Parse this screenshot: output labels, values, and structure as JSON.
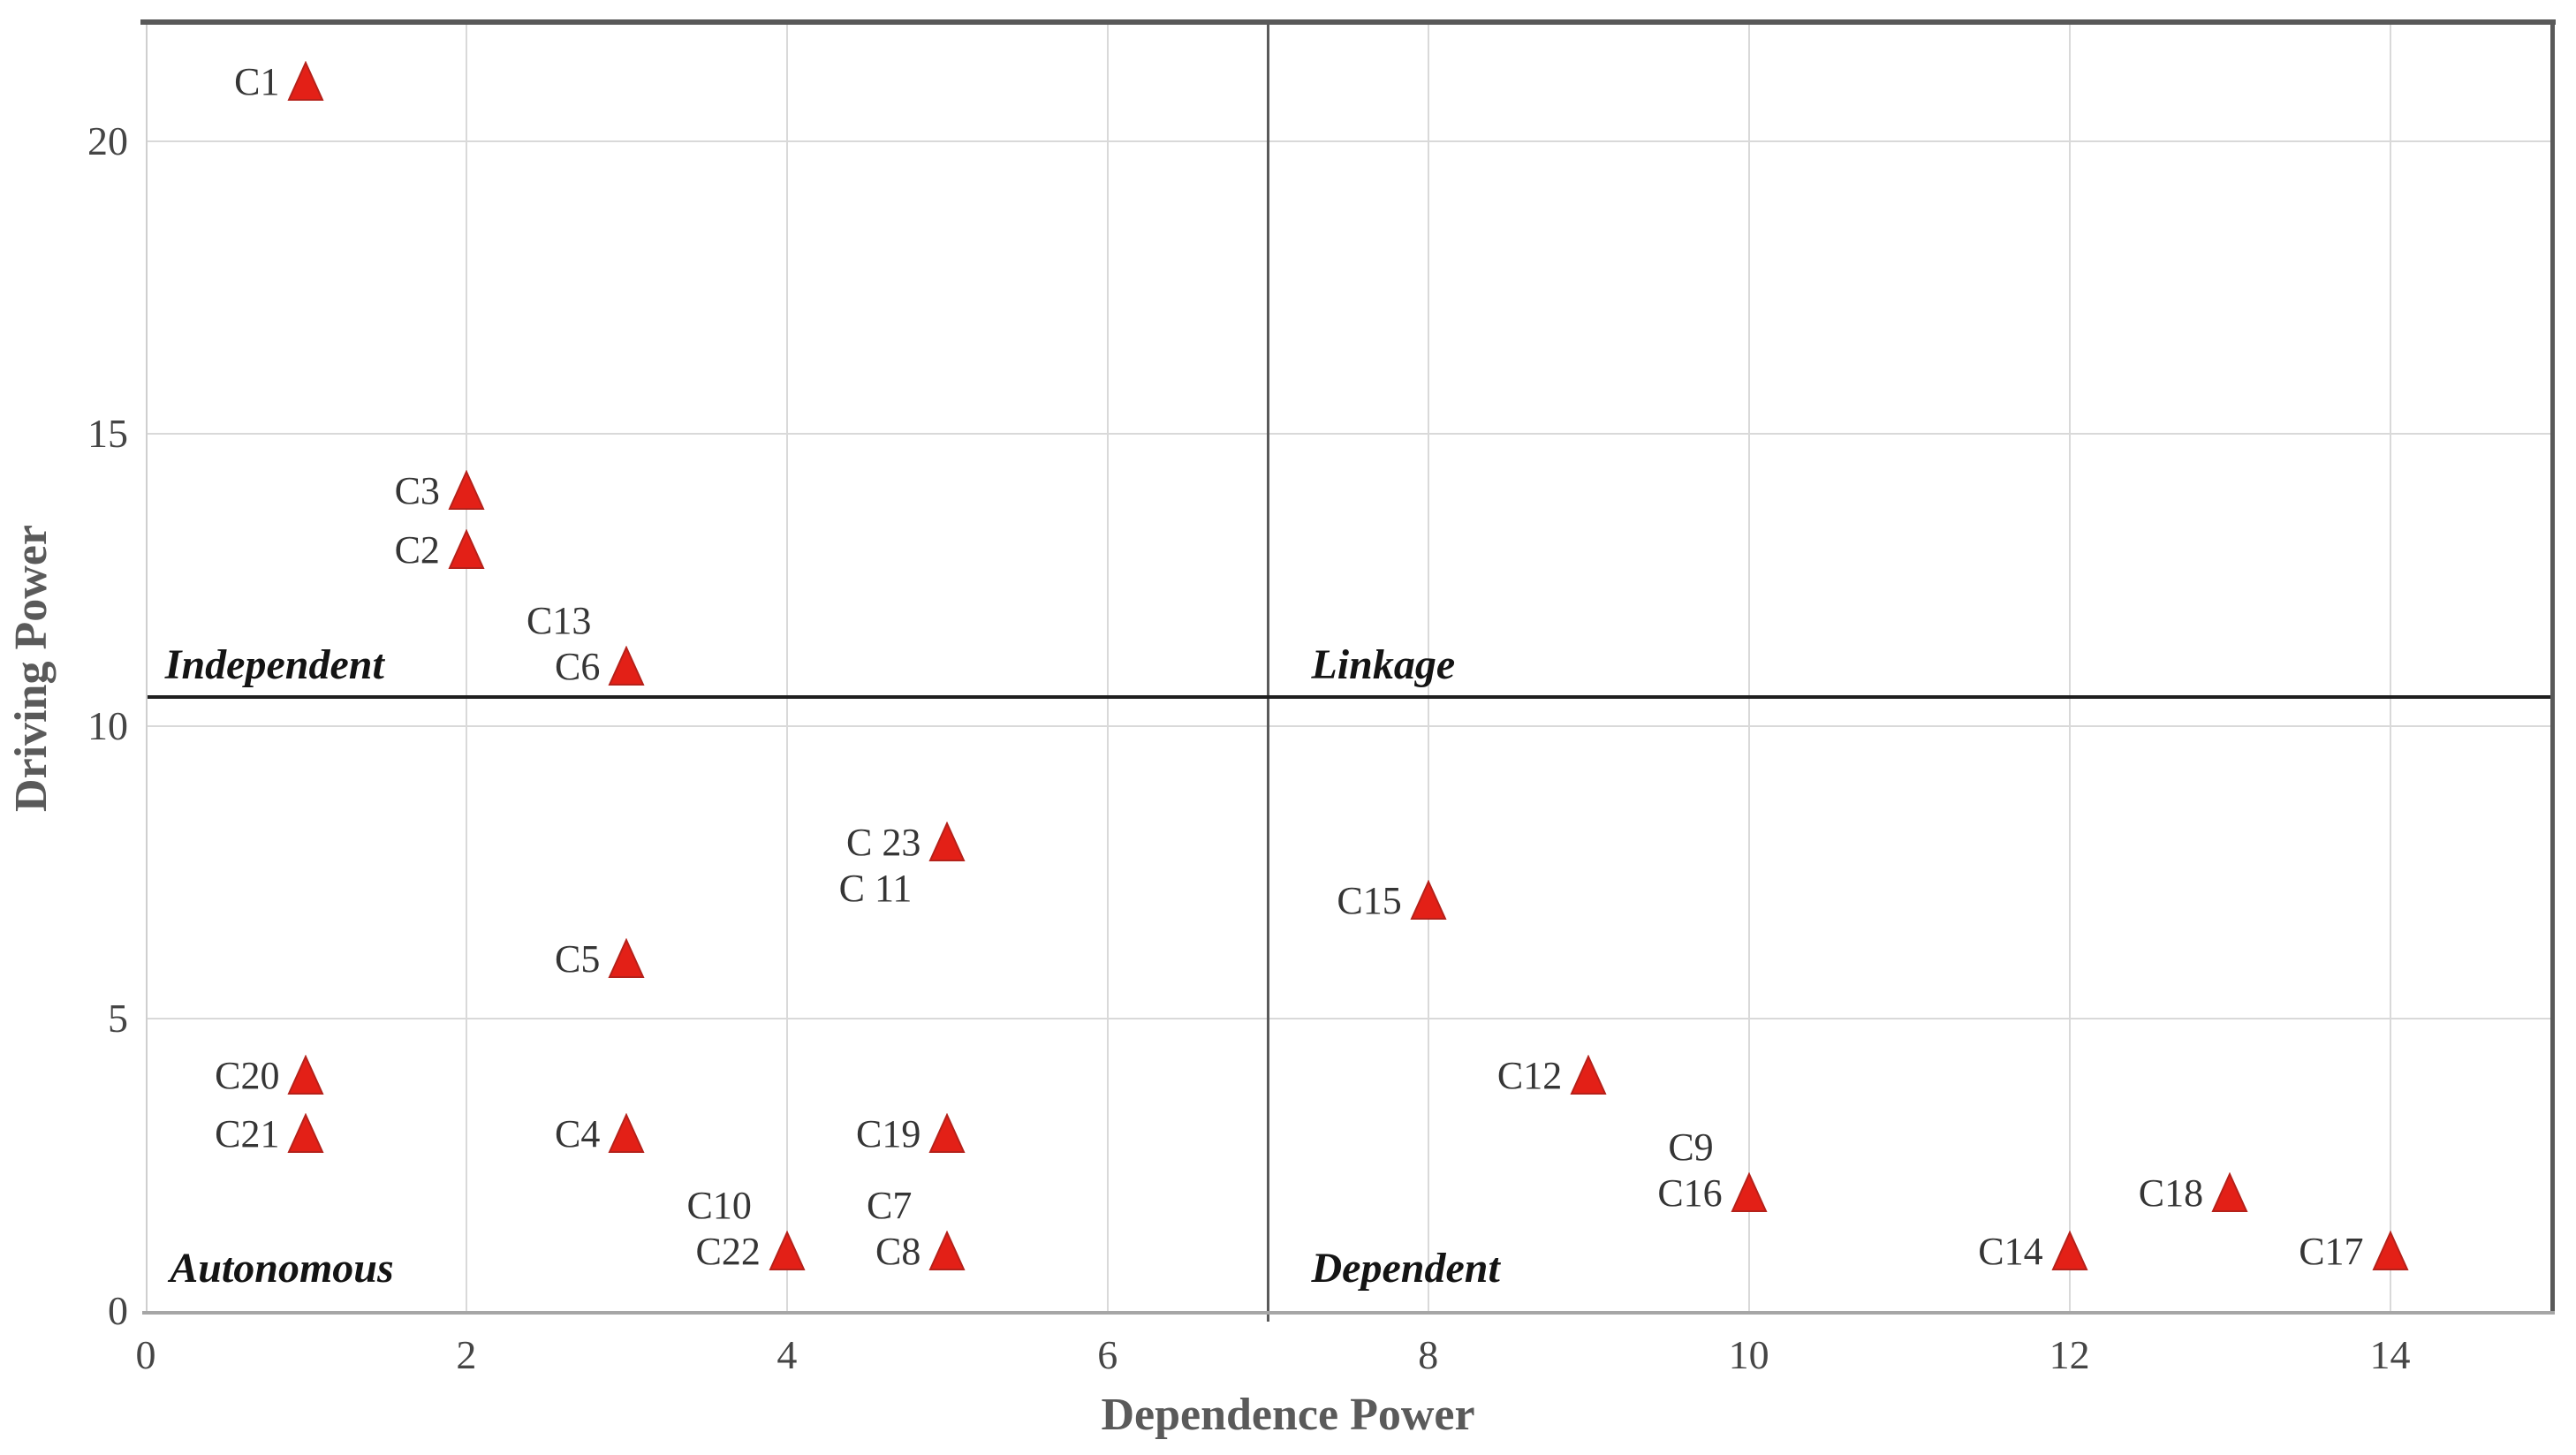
{
  "chart_data": {
    "type": "scatter",
    "title": "",
    "xlabel": "Dependence Power",
    "ylabel": "Driving Power",
    "xlim": [
      0,
      15
    ],
    "ylim": [
      0,
      22
    ],
    "x_ticks": [
      "0",
      "2",
      "4",
      "6",
      "8",
      "10",
      "12",
      "14"
    ],
    "x_tick_values": [
      0,
      2,
      4,
      6,
      8,
      10,
      12,
      14
    ],
    "y_ticks": [
      "0",
      "5",
      "10",
      "15",
      "20"
    ],
    "y_tick_values": [
      0,
      5,
      10,
      15,
      20
    ],
    "grid": true,
    "legend": "none",
    "marker": {
      "shape": "triangle-up",
      "fill": "#e32017",
      "stroke": "#b5211a"
    },
    "style": {
      "gridline_color": "#d9d9d9",
      "border_color": "#595959",
      "axis_line_color": "#a6a6a6",
      "left_border_color": "#cfcfcf",
      "divider_v_color": "#5a5a5a",
      "divider_h_color": "#1f1f1f"
    },
    "quadrant_dividers": {
      "x": 7,
      "y": 10.5
    },
    "quadrant_labels": [
      {
        "text": "Independent",
        "x": 0.12,
        "y": 11.05
      },
      {
        "text": "Linkage",
        "x": 7.15,
        "y": 11.05
      },
      {
        "text": "Autonomous",
        "x": 0.15,
        "y": 0.72
      },
      {
        "text": "Dependent",
        "x": 7.15,
        "y": 0.72
      }
    ],
    "points": [
      {
        "label": "C1",
        "x": 1,
        "y": 21
      },
      {
        "label": "C3",
        "x": 2,
        "y": 14
      },
      {
        "label": "C2",
        "x": 2,
        "y": 13
      },
      {
        "label": "C6",
        "x": 3,
        "y": 11,
        "label2": "C13",
        "label2_pos": "above"
      },
      {
        "label": "C 23",
        "x": 5,
        "y": 8,
        "label2": "C 11",
        "label2_pos": "below"
      },
      {
        "label": "C15",
        "x": 8,
        "y": 7
      },
      {
        "label": "C5",
        "x": 3,
        "y": 6
      },
      {
        "label": "C20",
        "x": 1,
        "y": 4
      },
      {
        "label": "C21",
        "x": 1,
        "y": 3
      },
      {
        "label": "C4",
        "x": 3,
        "y": 3
      },
      {
        "label": "C19",
        "x": 5,
        "y": 3
      },
      {
        "label": "C12",
        "x": 9,
        "y": 4
      },
      {
        "label": "C16",
        "x": 10,
        "y": 2,
        "label2": "C9",
        "label2_pos": "above"
      },
      {
        "label": "C22",
        "x": 4,
        "y": 1,
        "label2": "C10",
        "label2_pos": "above"
      },
      {
        "label": "C8",
        "x": 5,
        "y": 1,
        "label2": "C7",
        "label2_pos": "above"
      },
      {
        "label": "C18",
        "x": 13,
        "y": 2
      },
      {
        "label": "C14",
        "x": 12,
        "y": 1
      },
      {
        "label": "C17",
        "x": 14,
        "y": 1
      }
    ]
  }
}
